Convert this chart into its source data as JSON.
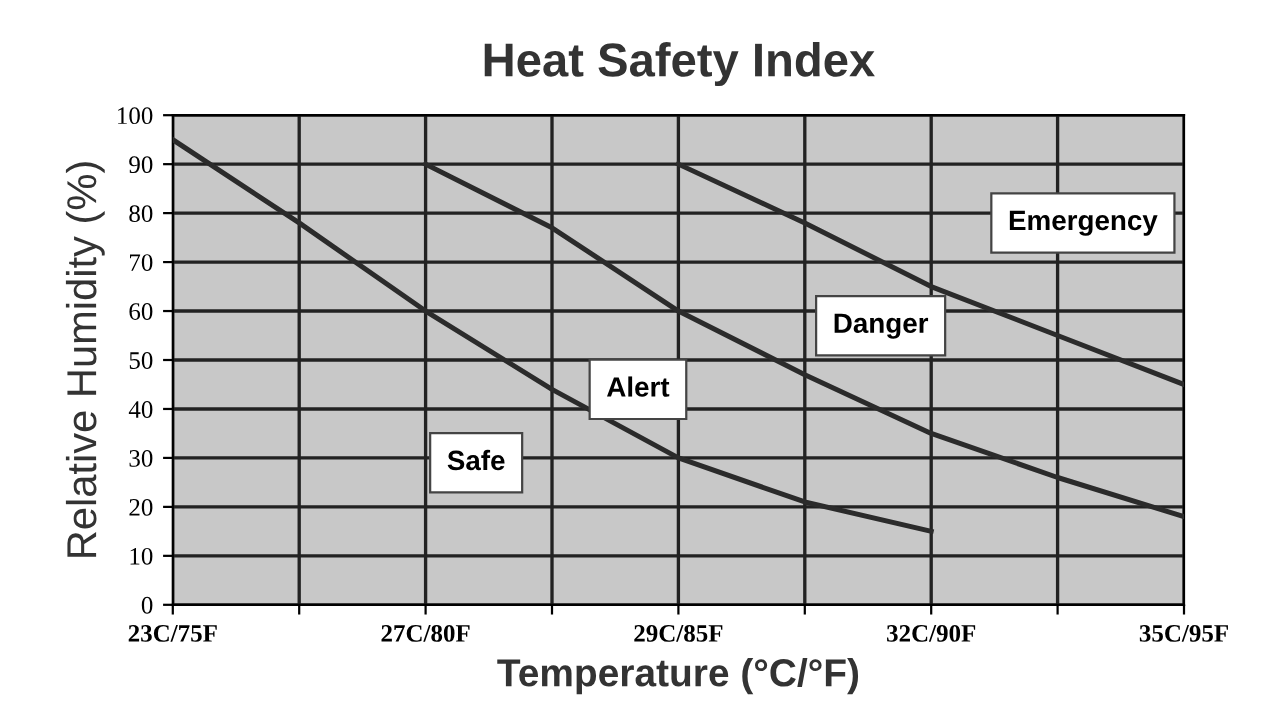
{
  "chart_data": {
    "type": "line",
    "title": "Heat Safety Index",
    "xlabel": "Temperature (°C/°F)",
    "ylabel": "Relative Humidity (%)",
    "categories": [
      "23C/75F",
      null,
      "27C/80F",
      null,
      "29C/85F",
      null,
      "32C/90F",
      null,
      "35C/95F"
    ],
    "ylim": [
      0,
      100
    ],
    "yticks": [
      0,
      10,
      20,
      30,
      40,
      50,
      60,
      70,
      80,
      90,
      100
    ],
    "grid": true,
    "marker": "none",
    "line_style": "solid",
    "series": [
      {
        "color": "#2b2b2b",
        "values": [
          95,
          78,
          60,
          44,
          30,
          21,
          15,
          null,
          null
        ]
      },
      {
        "color": "#2b2b2b",
        "values": [
          null,
          null,
          90,
          77,
          60,
          47,
          35,
          26,
          18
        ]
      },
      {
        "color": "#2b2b2b",
        "values": [
          null,
          null,
          null,
          null,
          90,
          78,
          65,
          55,
          45
        ]
      }
    ],
    "annotations": [
      "Safe",
      "Alert",
      "Danger",
      "Emergency"
    ]
  }
}
